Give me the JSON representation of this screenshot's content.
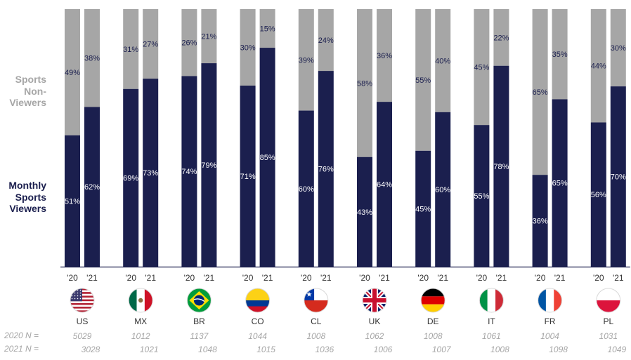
{
  "legend": {
    "non_viewers": [
      "Sports",
      "Non-",
      "Viewers"
    ],
    "viewers": [
      "Monthly",
      "Sports",
      "Viewers"
    ]
  },
  "sample_labels": {
    "y2020": "2020 N =",
    "y2021": "2021 N ="
  },
  "colors": {
    "viewers": "#1b1f4e",
    "non_viewers": "#a6a6a6",
    "axis": "#1b1f4e",
    "n_text": "#a6a6a6"
  },
  "chart_data": {
    "type": "bar",
    "stacked": "percent",
    "year_labels": [
      "'20",
      "'21"
    ],
    "countries": [
      {
        "code": "US",
        "flag": "flag-us",
        "viewers": [
          51,
          62
        ],
        "non_viewers": [
          49,
          38
        ],
        "n": [
          "5029",
          "3028"
        ]
      },
      {
        "code": "MX",
        "flag": "flag-mx",
        "viewers": [
          69,
          73
        ],
        "non_viewers": [
          31,
          27
        ],
        "n": [
          "1012",
          "1021"
        ]
      },
      {
        "code": "BR",
        "flag": "flag-br",
        "viewers": [
          74,
          79
        ],
        "non_viewers": [
          26,
          21
        ],
        "n": [
          "1137",
          "1048"
        ]
      },
      {
        "code": "CO",
        "flag": "flag-co",
        "viewers": [
          71,
          85
        ],
        "non_viewers": [
          30,
          15
        ],
        "n": [
          "1044",
          "1015"
        ]
      },
      {
        "code": "CL",
        "flag": "flag-cl",
        "viewers": [
          60,
          76
        ],
        "non_viewers": [
          39,
          24
        ],
        "n": [
          "1008",
          "1036"
        ]
      },
      {
        "code": "UK",
        "flag": "flag-uk",
        "viewers": [
          43,
          64
        ],
        "non_viewers": [
          58,
          36
        ],
        "n": [
          "1062",
          "1006"
        ]
      },
      {
        "code": "DE",
        "flag": "flag-de",
        "viewers": [
          45,
          60
        ],
        "non_viewers": [
          55,
          40
        ],
        "n": [
          "1008",
          "1007"
        ]
      },
      {
        "code": "IT",
        "flag": "flag-it",
        "viewers": [
          55,
          78
        ],
        "non_viewers": [
          45,
          22
        ],
        "n": [
          "1061",
          "1008"
        ]
      },
      {
        "code": "FR",
        "flag": "flag-fr",
        "viewers": [
          36,
          65
        ],
        "non_viewers": [
          65,
          35
        ],
        "n": [
          "1004",
          "1098"
        ]
      },
      {
        "code": "PL",
        "flag": "flag-pl",
        "viewers": [
          56,
          70
        ],
        "non_viewers": [
          44,
          30
        ],
        "n": [
          "1031",
          "1049"
        ]
      }
    ],
    "value_suffix": "%",
    "ylim": [
      0,
      100
    ]
  }
}
